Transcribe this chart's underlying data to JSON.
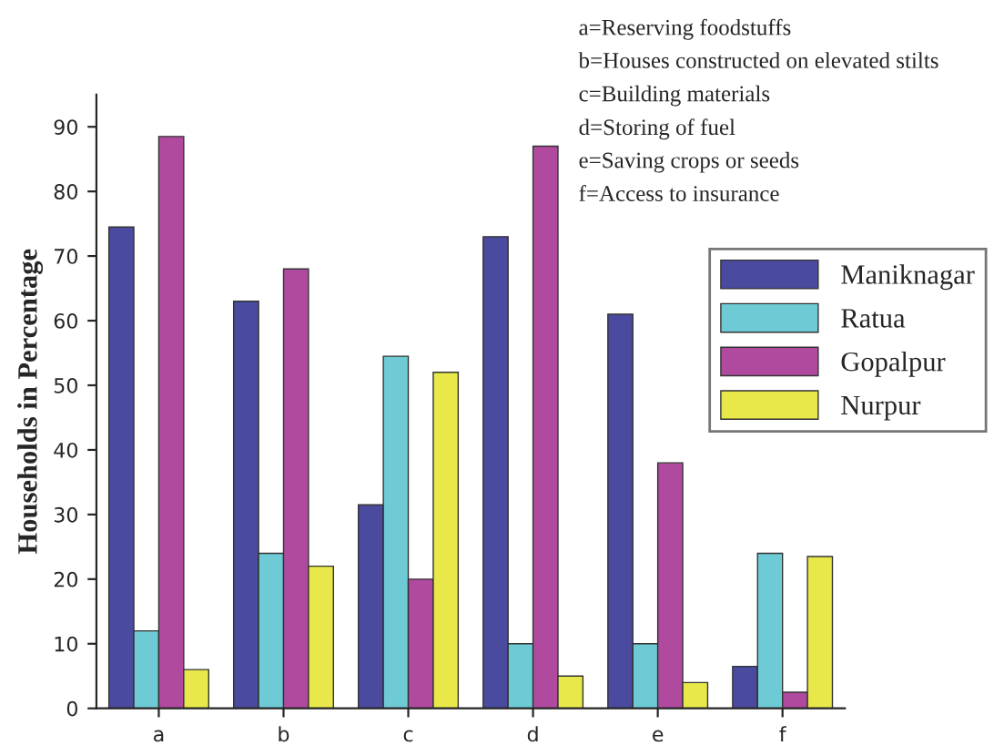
{
  "chart_data": {
    "type": "bar",
    "ylabel": "Households in Percentage",
    "categories": [
      "a",
      "b",
      "c",
      "d",
      "e",
      "f"
    ],
    "series": [
      {
        "name": "Maniknagar",
        "color": "#4a4a9e",
        "values": [
          74.5,
          63,
          31.5,
          73,
          61,
          6.5
        ]
      },
      {
        "name": "Ratua",
        "color": "#6ecbd6",
        "values": [
          12,
          24,
          54.5,
          10,
          10,
          24
        ]
      },
      {
        "name": "Gopalpur",
        "color": "#b04a9e",
        "values": [
          88.5,
          68,
          20,
          87,
          38,
          2.5
        ]
      },
      {
        "name": "Nurpur",
        "color": "#e8e84a",
        "values": [
          6,
          22,
          52,
          5,
          4,
          23.5
        ]
      }
    ],
    "ylim": [
      0,
      95
    ],
    "yticks": [
      0,
      10,
      20,
      30,
      40,
      50,
      60,
      70,
      80,
      90
    ],
    "grid": false,
    "legend": "right",
    "annotations": [
      "a=Reserving foodstuffs",
      "b=Houses constructed on elevated stilts",
      "c=Building materials",
      "d=Storing of fuel",
      "e=Saving crops or seeds",
      "f=Access to insurance"
    ]
  }
}
